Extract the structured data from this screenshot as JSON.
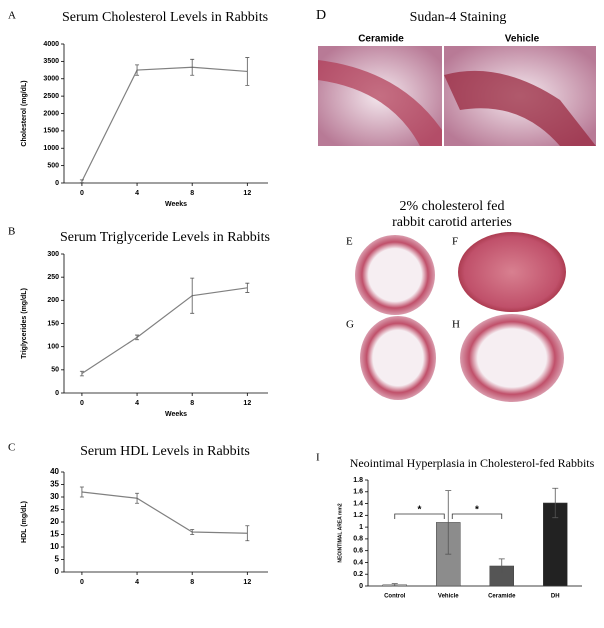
{
  "chart_data": [
    {
      "type": "line",
      "panel_label": "A",
      "title": "Serum Cholesterol Levels in Rabbits",
      "ylabel": "Cholesterol (mg/dL)",
      "xlabel": "Weeks",
      "x": [
        0,
        4,
        8,
        12
      ],
      "values": [
        50,
        3250,
        3330,
        3210
      ],
      "errors": [
        40,
        150,
        230,
        400
      ],
      "color": "#808080",
      "xlim": [
        -1.3,
        13.5
      ],
      "xticks": [
        0,
        4,
        8,
        12
      ],
      "ylim": [
        0,
        4000
      ],
      "yticks": [
        0,
        500,
        1000,
        1500,
        2000,
        2500,
        3000,
        3500,
        4000
      ]
    },
    {
      "type": "line",
      "panel_label": "B",
      "title": "Serum Triglyceride Levels in Rabbits",
      "ylabel": "Triglycerides (mg/dL)",
      "xlabel": "Weeks",
      "x": [
        0,
        4,
        8,
        12
      ],
      "values": [
        42,
        120,
        210,
        227
      ],
      "errors": [
        5,
        5,
        38,
        10
      ],
      "color": "#808080",
      "xlim": [
        -1.3,
        13.5
      ],
      "xticks": [
        0,
        4,
        8,
        12
      ],
      "ylim": [
        0,
        300
      ],
      "yticks": [
        0,
        50,
        100,
        150,
        200,
        250,
        300
      ]
    },
    {
      "type": "line",
      "panel_label": "C",
      "title": "Serum HDL Levels in Rabbits",
      "ylabel": "HDL (mg/dL)",
      "x": [
        0,
        4,
        8,
        12
      ],
      "values": [
        32,
        29.5,
        16,
        15.5
      ],
      "errors": [
        2,
        2,
        1,
        3
      ],
      "color": "#808080",
      "xlim": [
        -1.3,
        13.5
      ],
      "xticks": [
        0,
        4,
        8,
        12
      ],
      "ylim": [
        0,
        40
      ],
      "yticks": [
        0,
        5,
        10,
        15,
        20,
        25,
        30,
        35,
        40
      ]
    },
    {
      "type": "bar",
      "panel_label": "I",
      "title": "Neointimal Hyperplasia in Cholesterol-fed Rabbits",
      "ylabel": "NEOINTIMAL AREA mm2",
      "categories": [
        "Control",
        "Vehicle",
        "Ceramide",
        "DH"
      ],
      "values": [
        0.02,
        1.08,
        0.34,
        1.41
      ],
      "errors": [
        0.02,
        0.54,
        0.12,
        0.25
      ],
      "colors": [
        "#c8c8c8",
        "#8c8c8c",
        "#555555",
        "#222222"
      ],
      "ylim": [
        0,
        1.8
      ],
      "yticks": [
        0,
        0.2,
        0.4,
        0.6,
        0.8,
        1,
        1.2,
        1.4,
        1.6,
        1.8
      ],
      "annotations": [
        "*",
        "*"
      ]
    }
  ],
  "images": {
    "panel_d": {
      "label": "D",
      "title": "Sudan-4 Staining",
      "left": "Ceramide",
      "right": "Vehicle"
    },
    "panel_eh": {
      "title_lines": [
        "2% cholesterol fed",
        "rabbit carotid arteries"
      ],
      "labels": [
        "E",
        "F",
        "G",
        "H"
      ]
    }
  }
}
